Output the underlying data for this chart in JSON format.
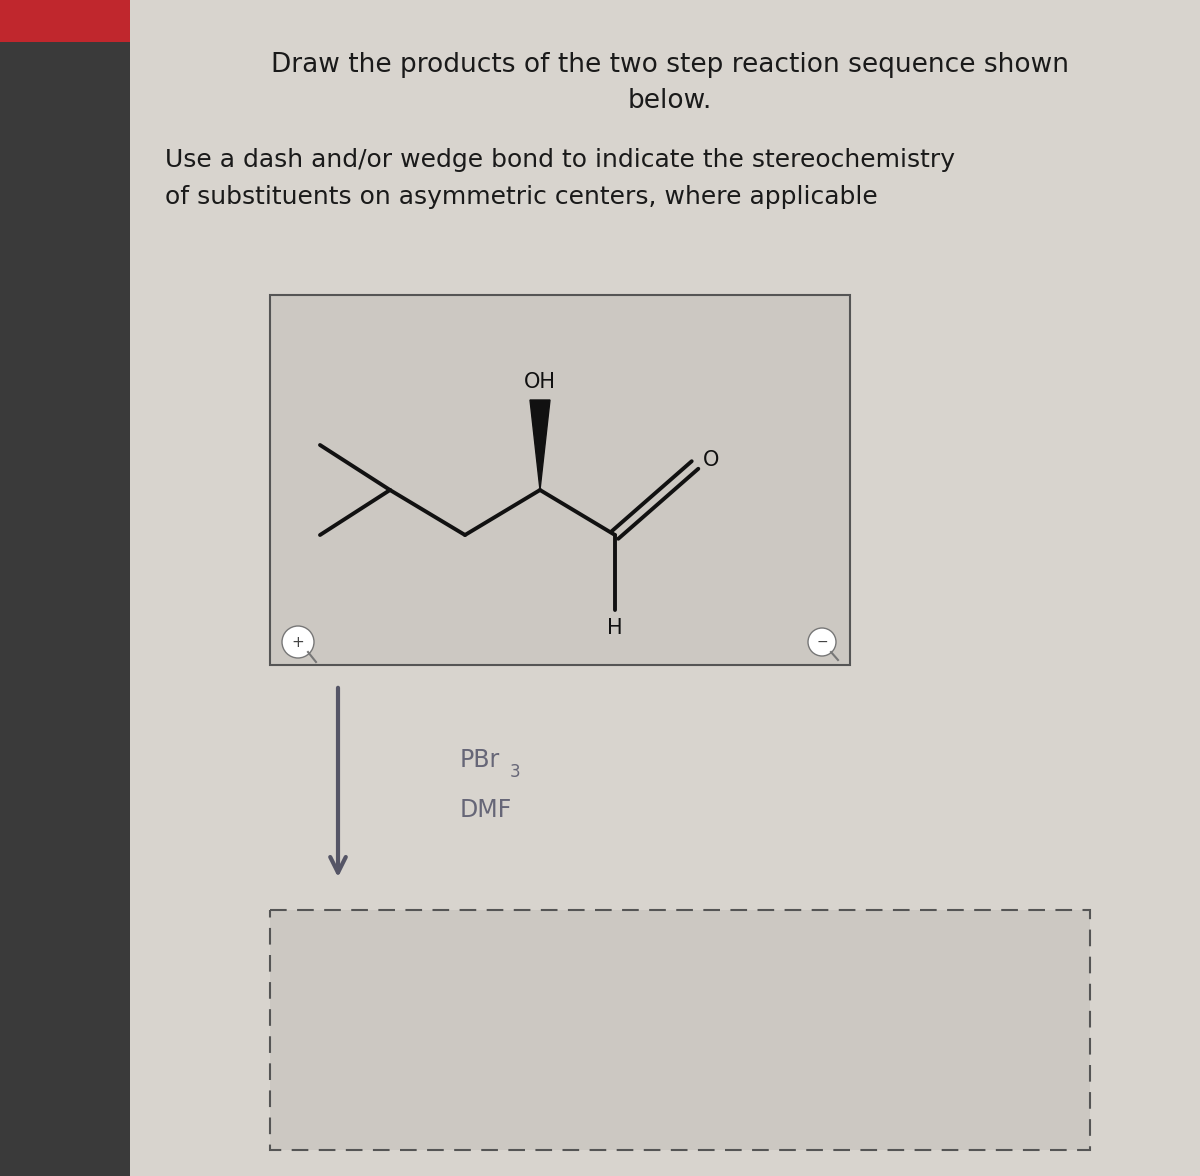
{
  "outer_bg": "#b0acaa",
  "left_bar_color": "#3a3a3a",
  "red_bar_color": "#c0272d",
  "panel_bg": "#d8d4ce",
  "mol_box_bg": "#ccc8c2",
  "title_line1": "Draw the products of the two step reaction sequence shown",
  "title_line2": "below.",
  "subtitle_line1": "Use a dash and/or wedge bond to indicate the stereochemistry",
  "subtitle_line2": "of substituents on asymmetric centers, where applicable",
  "text_color": "#1a1a1a",
  "bond_color": "#111111",
  "reagent_color": "#666677",
  "arrow_color": "#555566"
}
